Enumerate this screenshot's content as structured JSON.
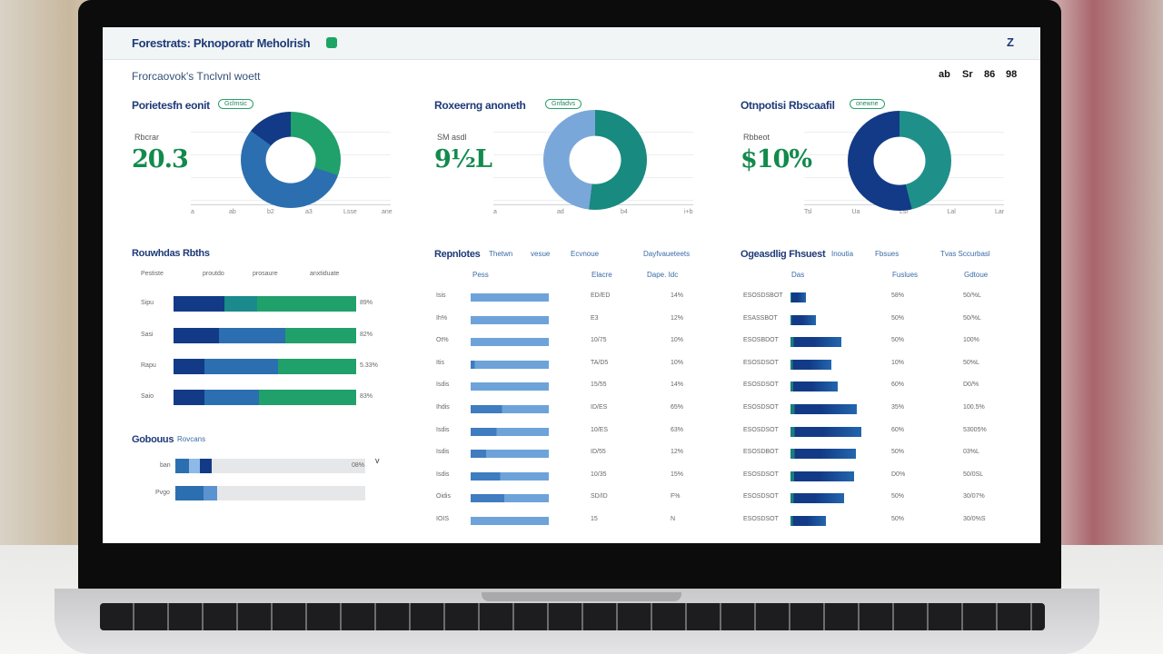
{
  "app": {
    "title": "Forestrats: Pknoporatr Meholrish",
    "subtitle": "Frorcaovok's Tnclvnl woett",
    "close": "Z",
    "toolbar_icons": [
      "ab",
      "Sr",
      "86",
      "98"
    ]
  },
  "colors": {
    "navy": "#123a86",
    "blue": "#2c6fb0",
    "teal": "#1b8a8c",
    "green": "#20a06a",
    "lightblue": "#7aa7d9"
  },
  "cards": [
    {
      "title": "Porietesfn eonit",
      "badge": "Gclmsic",
      "label": "Rbcrar",
      "value": "20.3",
      "ticks": [
        "a",
        "ab",
        "b2",
        "a3",
        "Lsse",
        "ane"
      ],
      "segments": [
        {
          "color": "#20a06a",
          "pct": 30
        },
        {
          "color": "#2c6fb0",
          "pct": 55
        },
        {
          "color": "#123a86",
          "pct": 15
        }
      ]
    },
    {
      "title": "Roxeerng anoneth",
      "badge": "Gnfadvs",
      "label": "SM asdl",
      "value": "9½L",
      "ticks": [
        "a",
        "ad",
        "b4",
        "i+b"
      ],
      "segments": [
        {
          "color": "#188a80",
          "pct": 52
        },
        {
          "color": "#7aa7d9",
          "pct": 48
        }
      ]
    },
    {
      "title": "Otnpotisi Rbscaafil",
      "badge": "onewne",
      "label": "Rbbeot",
      "value": "$10%",
      "ticks": [
        "Tsl",
        "Ua",
        "Lsr",
        "Lal",
        "Lar"
      ],
      "segments": [
        {
          "color": "#1f8f8a",
          "pct": 46
        },
        {
          "color": "#123a86",
          "pct": 54
        }
      ]
    }
  ],
  "stacked": {
    "title": "Rouwhdas Rbths",
    "legend": [
      "Pestiste",
      "proutdo",
      "prosaure",
      "anxtiduate"
    ],
    "rows": [
      {
        "label": "Sipu",
        "value": "89%",
        "parts": [
          28,
          18,
          54
        ]
      },
      {
        "label": "Sasi",
        "value": "82%",
        "parts": [
          25,
          36,
          39
        ]
      },
      {
        "label": "Rapu",
        "value": "5.33%",
        "parts": [
          17,
          40,
          43
        ]
      },
      {
        "label": "Saio",
        "value": "83%",
        "parts": [
          17,
          30,
          53
        ]
      }
    ]
  },
  "gobouus": {
    "title": "Gobouus",
    "link": "Rovcans",
    "rows": [
      {
        "label": "ban",
        "value": "08%",
        "fill": [
          0.07,
          0.13,
          0.19
        ]
      },
      {
        "label": "Pvgo",
        "value": "",
        "fill": [
          0.15,
          0.22,
          0.22
        ]
      }
    ],
    "expand": "v"
  },
  "mid_table": {
    "title": "Repnlotes",
    "tabs": [
      "Thetwn",
      "vesue"
    ],
    "col2": "Ecvnoue",
    "col3": "Dayfvaueteets",
    "headers": [
      "Pess",
      "Elacre",
      "Dape. Idc"
    ],
    "rows": [
      {
        "label": "Isis",
        "value": "ED/ED",
        "pct": "14%",
        "dark": 0
      },
      {
        "label": "Ih%",
        "value": "E3",
        "pct": "12%",
        "dark": 0
      },
      {
        "label": "Ot%",
        "value": "10/75",
        "pct": "10%",
        "dark": 0
      },
      {
        "label": "Itis",
        "value": "TA/D5",
        "pct": "10%",
        "dark": 0.05
      },
      {
        "label": "Isdis",
        "value": "15/55",
        "pct": "14%",
        "dark": 0
      },
      {
        "label": "Ihdis",
        "value": "ID/ES",
        "pct": "65%",
        "dark": 0.4
      },
      {
        "label": "Isdis",
        "value": "10/ES",
        "pct": "63%",
        "dark": 0.33
      },
      {
        "label": "Isdis",
        "value": "ID/55",
        "pct": "12%",
        "dark": 0.2
      },
      {
        "label": "Isdis",
        "value": "10/35",
        "pct": "15%",
        "dark": 0.38
      },
      {
        "label": "Oidis",
        "value": "SD/ID",
        "pct": "F%",
        "dark": 0.43
      },
      {
        "label": "IOIS",
        "value": "15",
        "pct": "N",
        "dark": 0
      }
    ]
  },
  "right_table": {
    "title": "Ogeasdlig Fhsuest",
    "tab": "Inoutia",
    "col2": "Fbsues",
    "col3": "Tvas Sccurbasl",
    "headers": [
      "Das",
      "Fuslues",
      "Gdtoue"
    ],
    "rows": [
      {
        "label": "ESOSDSBOT",
        "value": "58%",
        "pct": "50/%L",
        "w": 0.22
      },
      {
        "label": "ESASSBOT",
        "value": "50%",
        "pct": "50/%L",
        "w": 0.36
      },
      {
        "label": "ESOSBDOT",
        "value": "50%",
        "pct": "100%",
        "w": 0.72
      },
      {
        "label": "ESOSDSOT",
        "value": "10%",
        "pct": "50%L",
        "w": 0.58
      },
      {
        "label": "ESOSDSOT",
        "value": "60%",
        "pct": "D0/%",
        "w": 0.67
      },
      {
        "label": "ESOSDSOT",
        "value": "35%",
        "pct": "100.5%",
        "w": 0.94
      },
      {
        "label": "ESOSDSOT",
        "value": "60%",
        "pct": "53005%",
        "w": 1.0
      },
      {
        "label": "ESOSDBOT",
        "value": "50%",
        "pct": "03%L",
        "w": 0.92
      },
      {
        "label": "ESOSDSOT",
        "value": "D0%",
        "pct": "50/0SL",
        "w": 0.9
      },
      {
        "label": "ESOSDSOT",
        "value": "50%",
        "pct": "30/07%",
        "w": 0.75
      },
      {
        "label": "ESOSDSOT",
        "value": "50%",
        "pct": "30/0%S",
        "w": 0.5
      }
    ]
  }
}
